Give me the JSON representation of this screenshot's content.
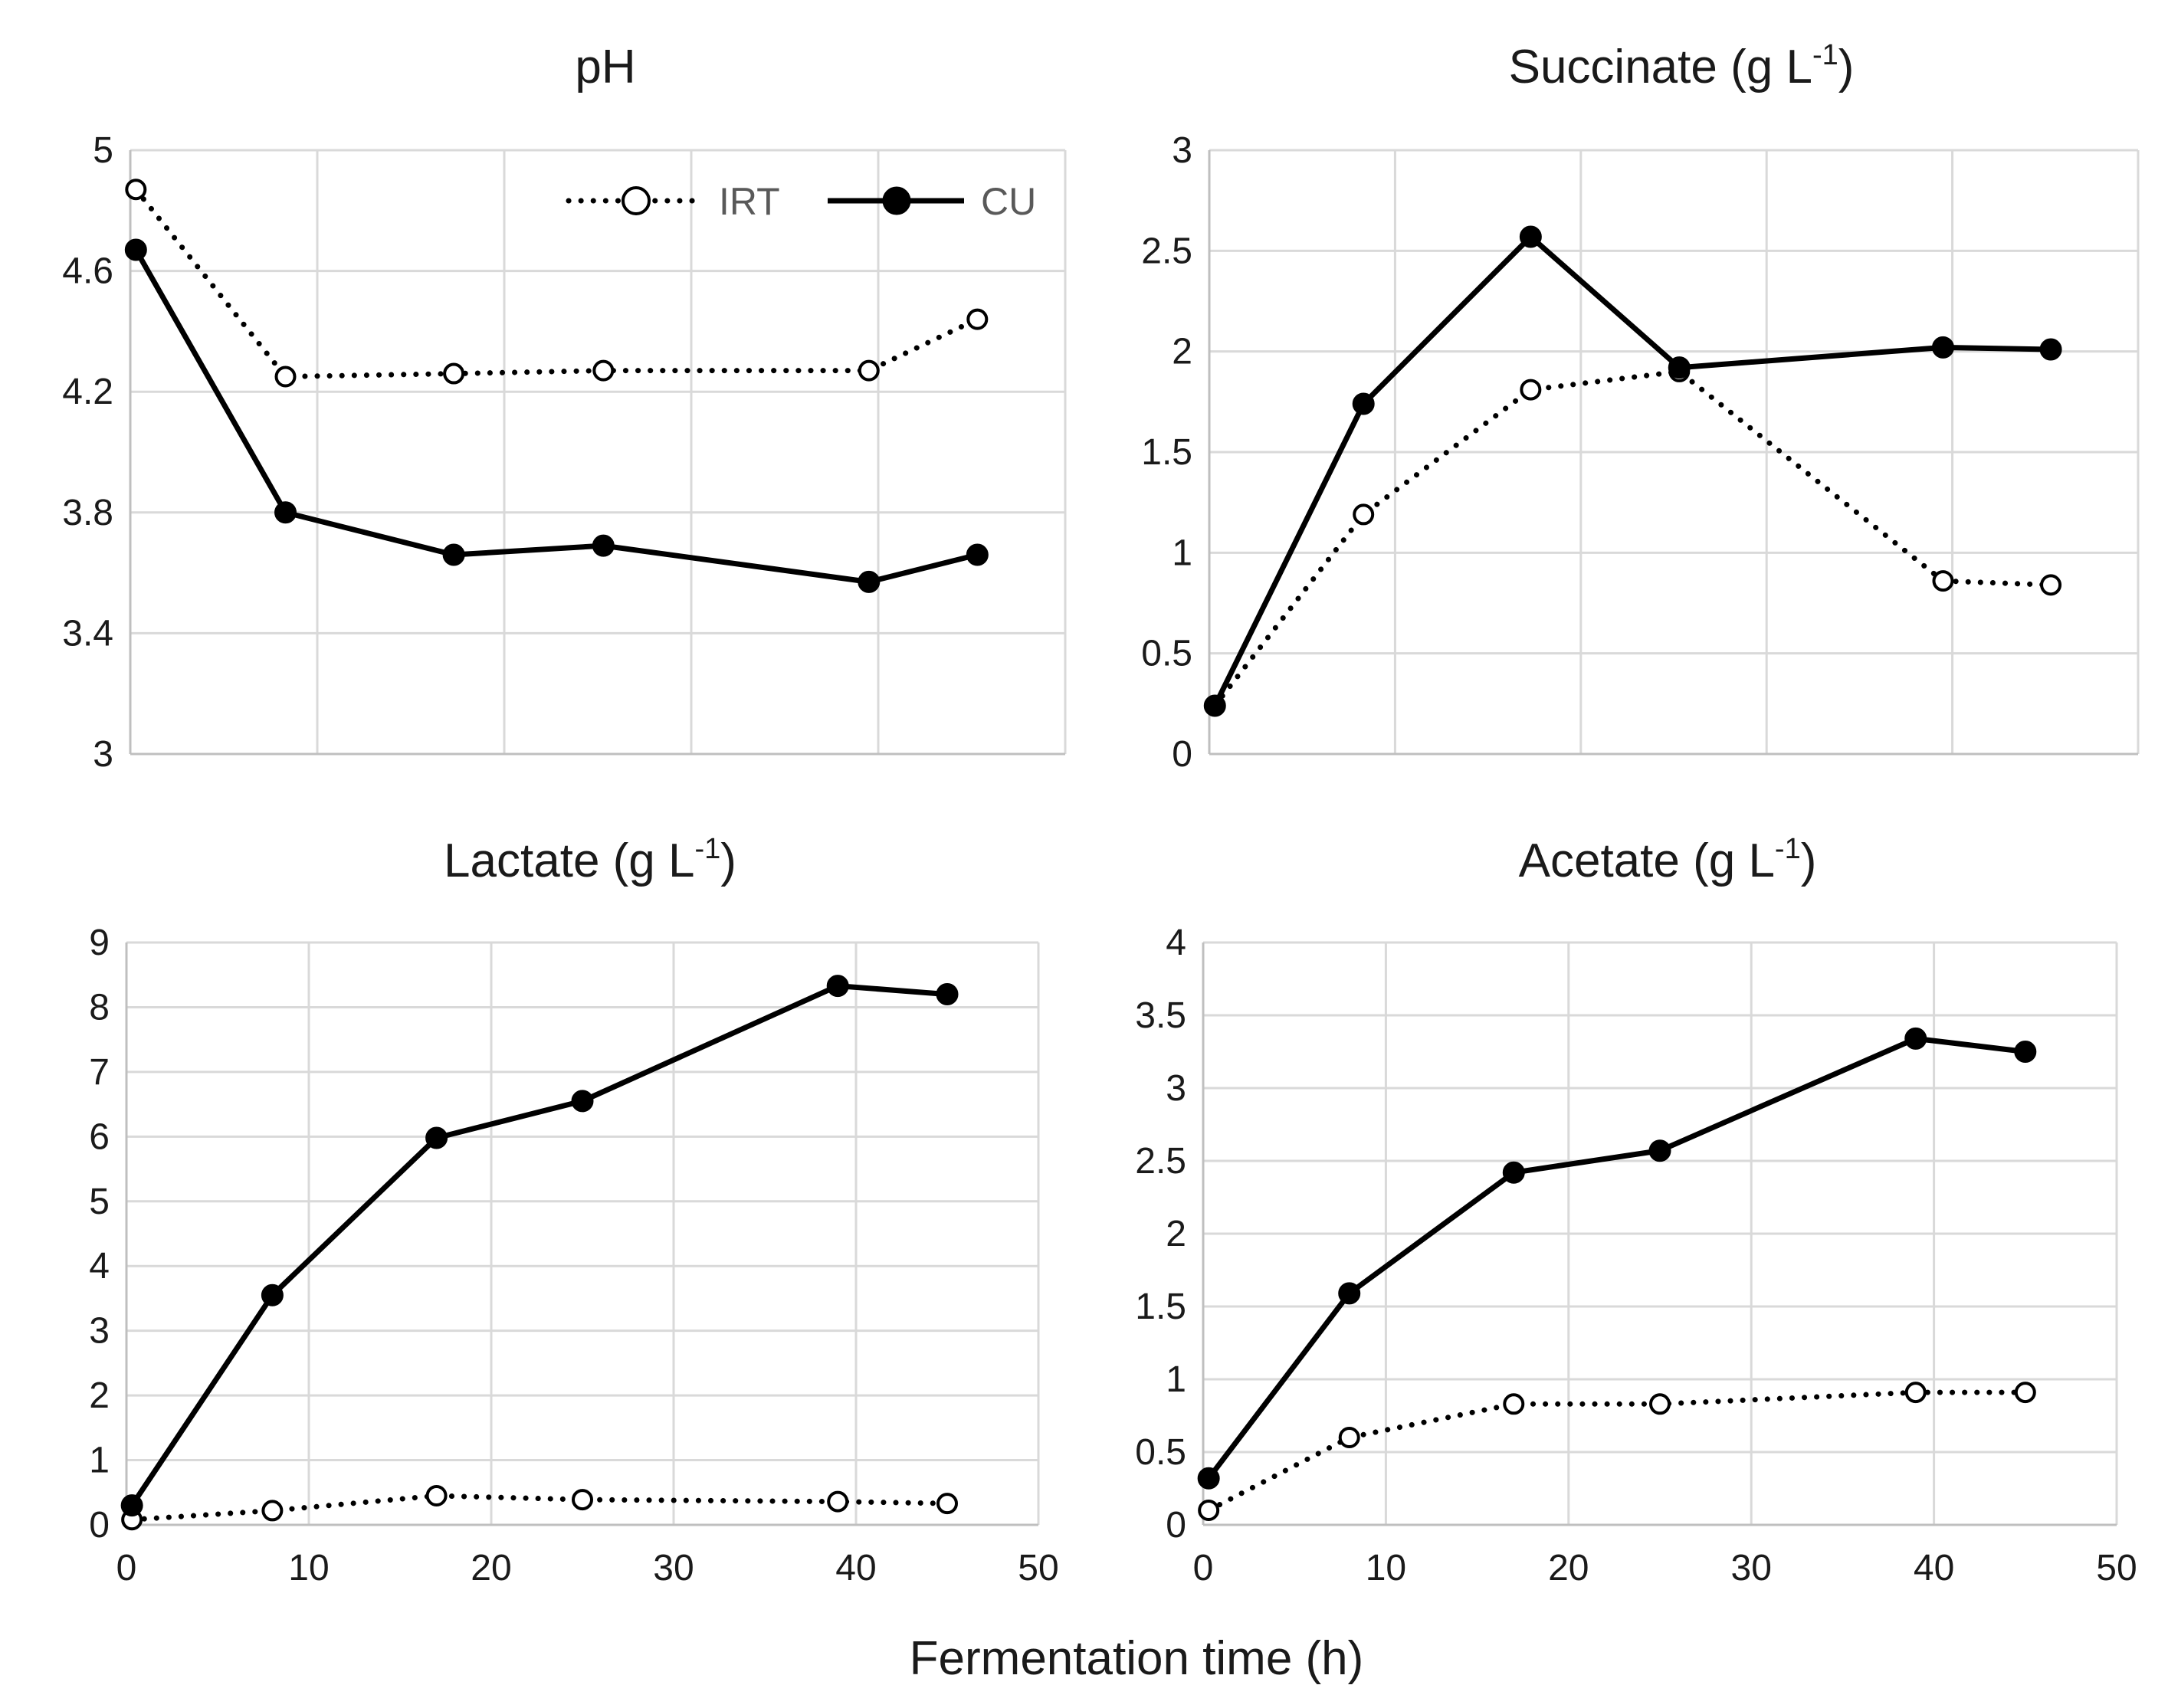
{
  "figure": {
    "xlabel": "Fermentation time (h)",
    "legend": {
      "placement": "top-right of pH panel",
      "entries": [
        {
          "name": "IRT",
          "style": "dotted-open-circle"
        },
        {
          "name": "CU",
          "style": "solid-filled-circle"
        }
      ]
    }
  },
  "chart_data": [
    {
      "id": "ph",
      "type": "line",
      "title": "pH",
      "title_sup": "",
      "title_close": "",
      "ylim": [
        3,
        5
      ],
      "yticks": [
        "3",
        "3.4",
        "3.8",
        "4.2",
        "4.6",
        "5"
      ],
      "ytick_values": [
        3,
        3.4,
        3.8,
        4.2,
        4.6,
        5
      ],
      "xlim": [
        0,
        50
      ],
      "xtick_values": [
        0,
        10,
        20,
        30,
        40,
        50
      ],
      "xticks": [],
      "series": [
        {
          "name": "IRT",
          "x": [
            0.3,
            8.3,
            17.3,
            25.3,
            39.5,
            45.3
          ],
          "y": [
            4.87,
            4.25,
            4.26,
            4.27,
            4.27,
            4.44
          ]
        },
        {
          "name": "CU",
          "x": [
            0.3,
            8.3,
            17.3,
            25.3,
            39.5,
            45.3
          ],
          "y": [
            4.67,
            3.8,
            3.66,
            3.69,
            3.57,
            3.66
          ]
        }
      ]
    },
    {
      "id": "succinate",
      "type": "line",
      "title": "Succinate (g L",
      "title_sup": "-1",
      "title_close": ")",
      "ylim": [
        0,
        3
      ],
      "yticks": [
        "0",
        "0.5",
        "1",
        "1.5",
        "2",
        "2.5",
        "3"
      ],
      "ytick_values": [
        0,
        0.5,
        1,
        1.5,
        2,
        2.5,
        3
      ],
      "xlim": [
        0,
        50
      ],
      "xtick_values": [
        0,
        10,
        20,
        30,
        40,
        50
      ],
      "xticks": [],
      "series": [
        {
          "name": "IRT",
          "x": [
            0.3,
            8.3,
            17.3,
            25.3,
            39.5,
            45.3
          ],
          "y": [
            0.24,
            1.19,
            1.81,
            1.9,
            0.86,
            0.84
          ]
        },
        {
          "name": "CU",
          "x": [
            0.3,
            8.3,
            17.3,
            25.3,
            39.5,
            45.3
          ],
          "y": [
            0.24,
            1.74,
            2.57,
            1.92,
            2.02,
            2.01
          ]
        }
      ]
    },
    {
      "id": "lactate",
      "type": "line",
      "title": "Lactate (g L",
      "title_sup": "-1",
      "title_close": ")",
      "ylim": [
        0,
        9
      ],
      "yticks": [
        "0",
        "1",
        "2",
        "3",
        "4",
        "5",
        "6",
        "7",
        "8",
        "9"
      ],
      "ytick_values": [
        0,
        1,
        2,
        3,
        4,
        5,
        6,
        7,
        8,
        9
      ],
      "xlim": [
        0,
        50
      ],
      "xtick_values": [
        0,
        10,
        20,
        30,
        40,
        50
      ],
      "xticks": [
        "0",
        "10",
        "20",
        "30",
        "40",
        "50"
      ],
      "series": [
        {
          "name": "IRT",
          "x": [
            0.3,
            8,
            17,
            25,
            39,
            45
          ],
          "y": [
            0.08,
            0.22,
            0.45,
            0.39,
            0.36,
            0.33
          ]
        },
        {
          "name": "CU",
          "x": [
            0.3,
            8,
            17,
            25,
            39,
            45
          ],
          "y": [
            0.3,
            3.55,
            5.98,
            6.55,
            8.33,
            8.2
          ]
        }
      ]
    },
    {
      "id": "acetate",
      "type": "line",
      "title": "Acetate (g L",
      "title_sup": "-1",
      "title_close": ")",
      "ylim": [
        0,
        4
      ],
      "yticks": [
        "0",
        "0.5",
        "1",
        "1.5",
        "2",
        "2.5",
        "3",
        "3.5",
        "4"
      ],
      "ytick_values": [
        0,
        0.5,
        1,
        1.5,
        2,
        2.5,
        3,
        3.5,
        4
      ],
      "xlim": [
        0,
        50
      ],
      "xtick_values": [
        0,
        10,
        20,
        30,
        40,
        50
      ],
      "xticks": [
        "0",
        "10",
        "20",
        "30",
        "40",
        "50"
      ],
      "series": [
        {
          "name": "IRT",
          "x": [
            0.3,
            8,
            17,
            25,
            39,
            45
          ],
          "y": [
            0.1,
            0.6,
            0.83,
            0.83,
            0.91,
            0.91
          ]
        },
        {
          "name": "CU",
          "x": [
            0.3,
            8,
            17,
            25,
            39,
            45
          ],
          "y": [
            0.32,
            1.59,
            2.42,
            2.57,
            3.34,
            3.25
          ]
        }
      ]
    }
  ]
}
